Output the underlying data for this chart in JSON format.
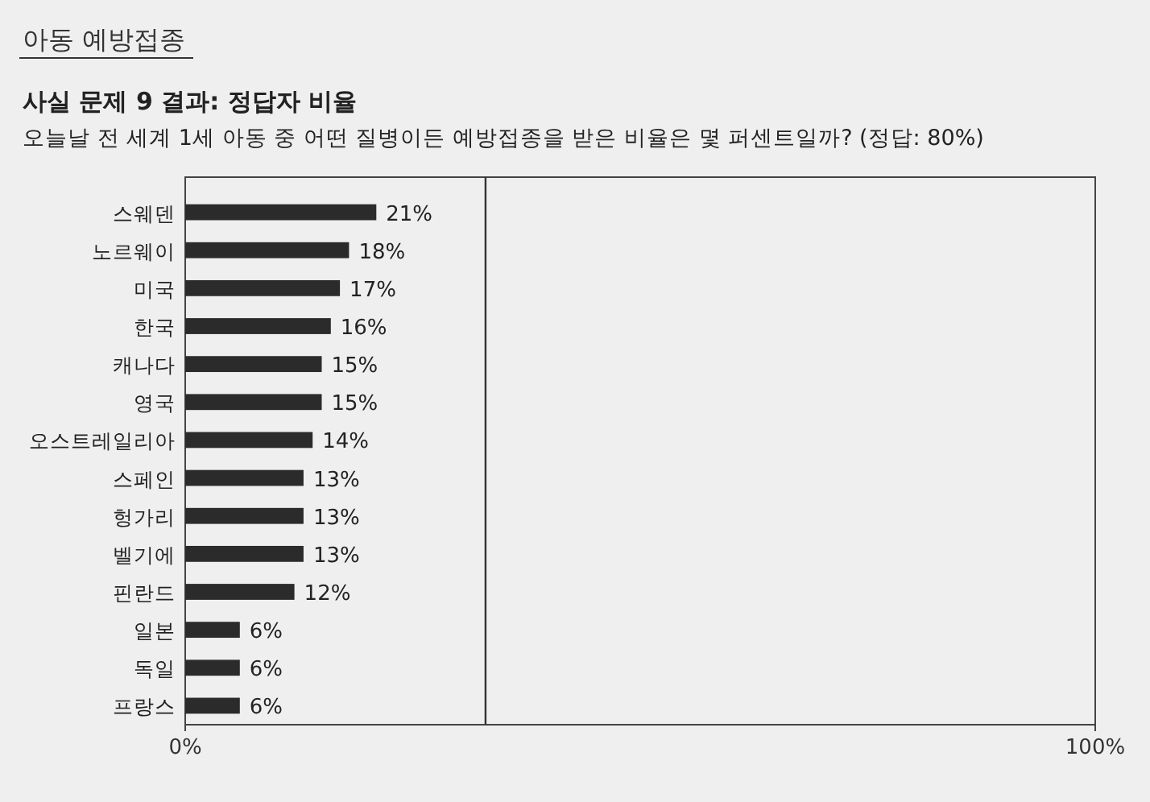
{
  "chart_data": {
    "type": "bar",
    "orientation": "horizontal",
    "title": "사실 문제 9 결과: 정답자 비율",
    "subtitle": "오늘날 전 세계 1세 아동 중 어떤 질병이든 예방접종을 받은 비율은 몇 퍼센트일까? (정답: 80%)",
    "annotations": [
      "아동 예방접종"
    ],
    "categories": [
      "스웨덴",
      "노르웨이",
      "미국",
      "한국",
      "캐나다",
      "영국",
      "오스트레일리아",
      "스페인",
      "헝가리",
      "벨기에",
      "핀란드",
      "일본",
      "독일",
      "프랑스"
    ],
    "values": [
      21,
      18,
      17,
      16,
      15,
      15,
      14,
      13,
      13,
      13,
      12,
      6,
      6,
      6
    ],
    "value_labels": [
      "21%",
      "18%",
      "17%",
      "16%",
      "15%",
      "15%",
      "14%",
      "13%",
      "13%",
      "13%",
      "12%",
      "6%",
      "6%",
      "6%"
    ],
    "color": "#2b2b2b",
    "xlim": [
      0,
      100
    ],
    "xticks": [
      {
        "value": 0,
        "label": "0%"
      },
      {
        "value": 100,
        "label": "100%"
      }
    ],
    "ref_lines": [
      {
        "axis": "x",
        "value": 33,
        "color": "#333333"
      }
    ]
  }
}
